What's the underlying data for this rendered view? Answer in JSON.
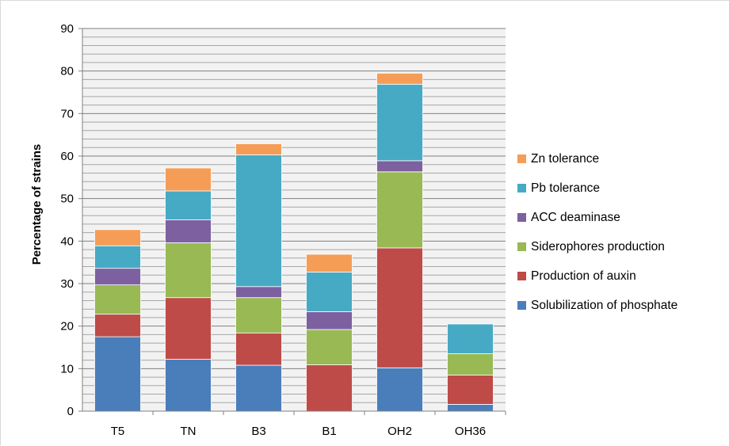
{
  "chart_data": {
    "type": "bar",
    "stacked": true,
    "title": "",
    "xlabel": "",
    "ylabel": "Percentage of strains",
    "ylim": [
      0,
      90
    ],
    "yticks": [
      0,
      10,
      20,
      30,
      40,
      50,
      60,
      70,
      80,
      90
    ],
    "minor_gridlines": true,
    "grid": true,
    "legend_position": "right",
    "categories": [
      "T5",
      "TN",
      "B3",
      "B1",
      "OH2",
      "OH36"
    ],
    "series": [
      {
        "name": "Solubilization of phosphate",
        "color": "#4a7ebb",
        "values": [
          17.5,
          12.2,
          10.8,
          0,
          10.2,
          1.6
        ]
      },
      {
        "name": "Production of auxin",
        "color": "#be4b48",
        "values": [
          5.3,
          14.5,
          7.6,
          10.9,
          28.2,
          6.9
        ]
      },
      {
        "name": " Siderophores production",
        "color": "#98b954",
        "values": [
          6.9,
          12.9,
          8.3,
          8.3,
          17.9,
          5.0
        ]
      },
      {
        "name": "ACC deaminase",
        "color": "#7d60a0",
        "values": [
          3.9,
          5.4,
          2.6,
          4.2,
          2.6,
          0
        ]
      },
      {
        "name": "Pb tolerance",
        "color": "#46aac5",
        "values": [
          5.3,
          6.8,
          31.0,
          9.3,
          18.0,
          7.0
        ]
      },
      {
        "name": "Zn tolerance",
        "color": "#f59d56",
        "values": [
          3.8,
          5.4,
          2.6,
          4.2,
          2.6,
          0
        ]
      }
    ]
  }
}
